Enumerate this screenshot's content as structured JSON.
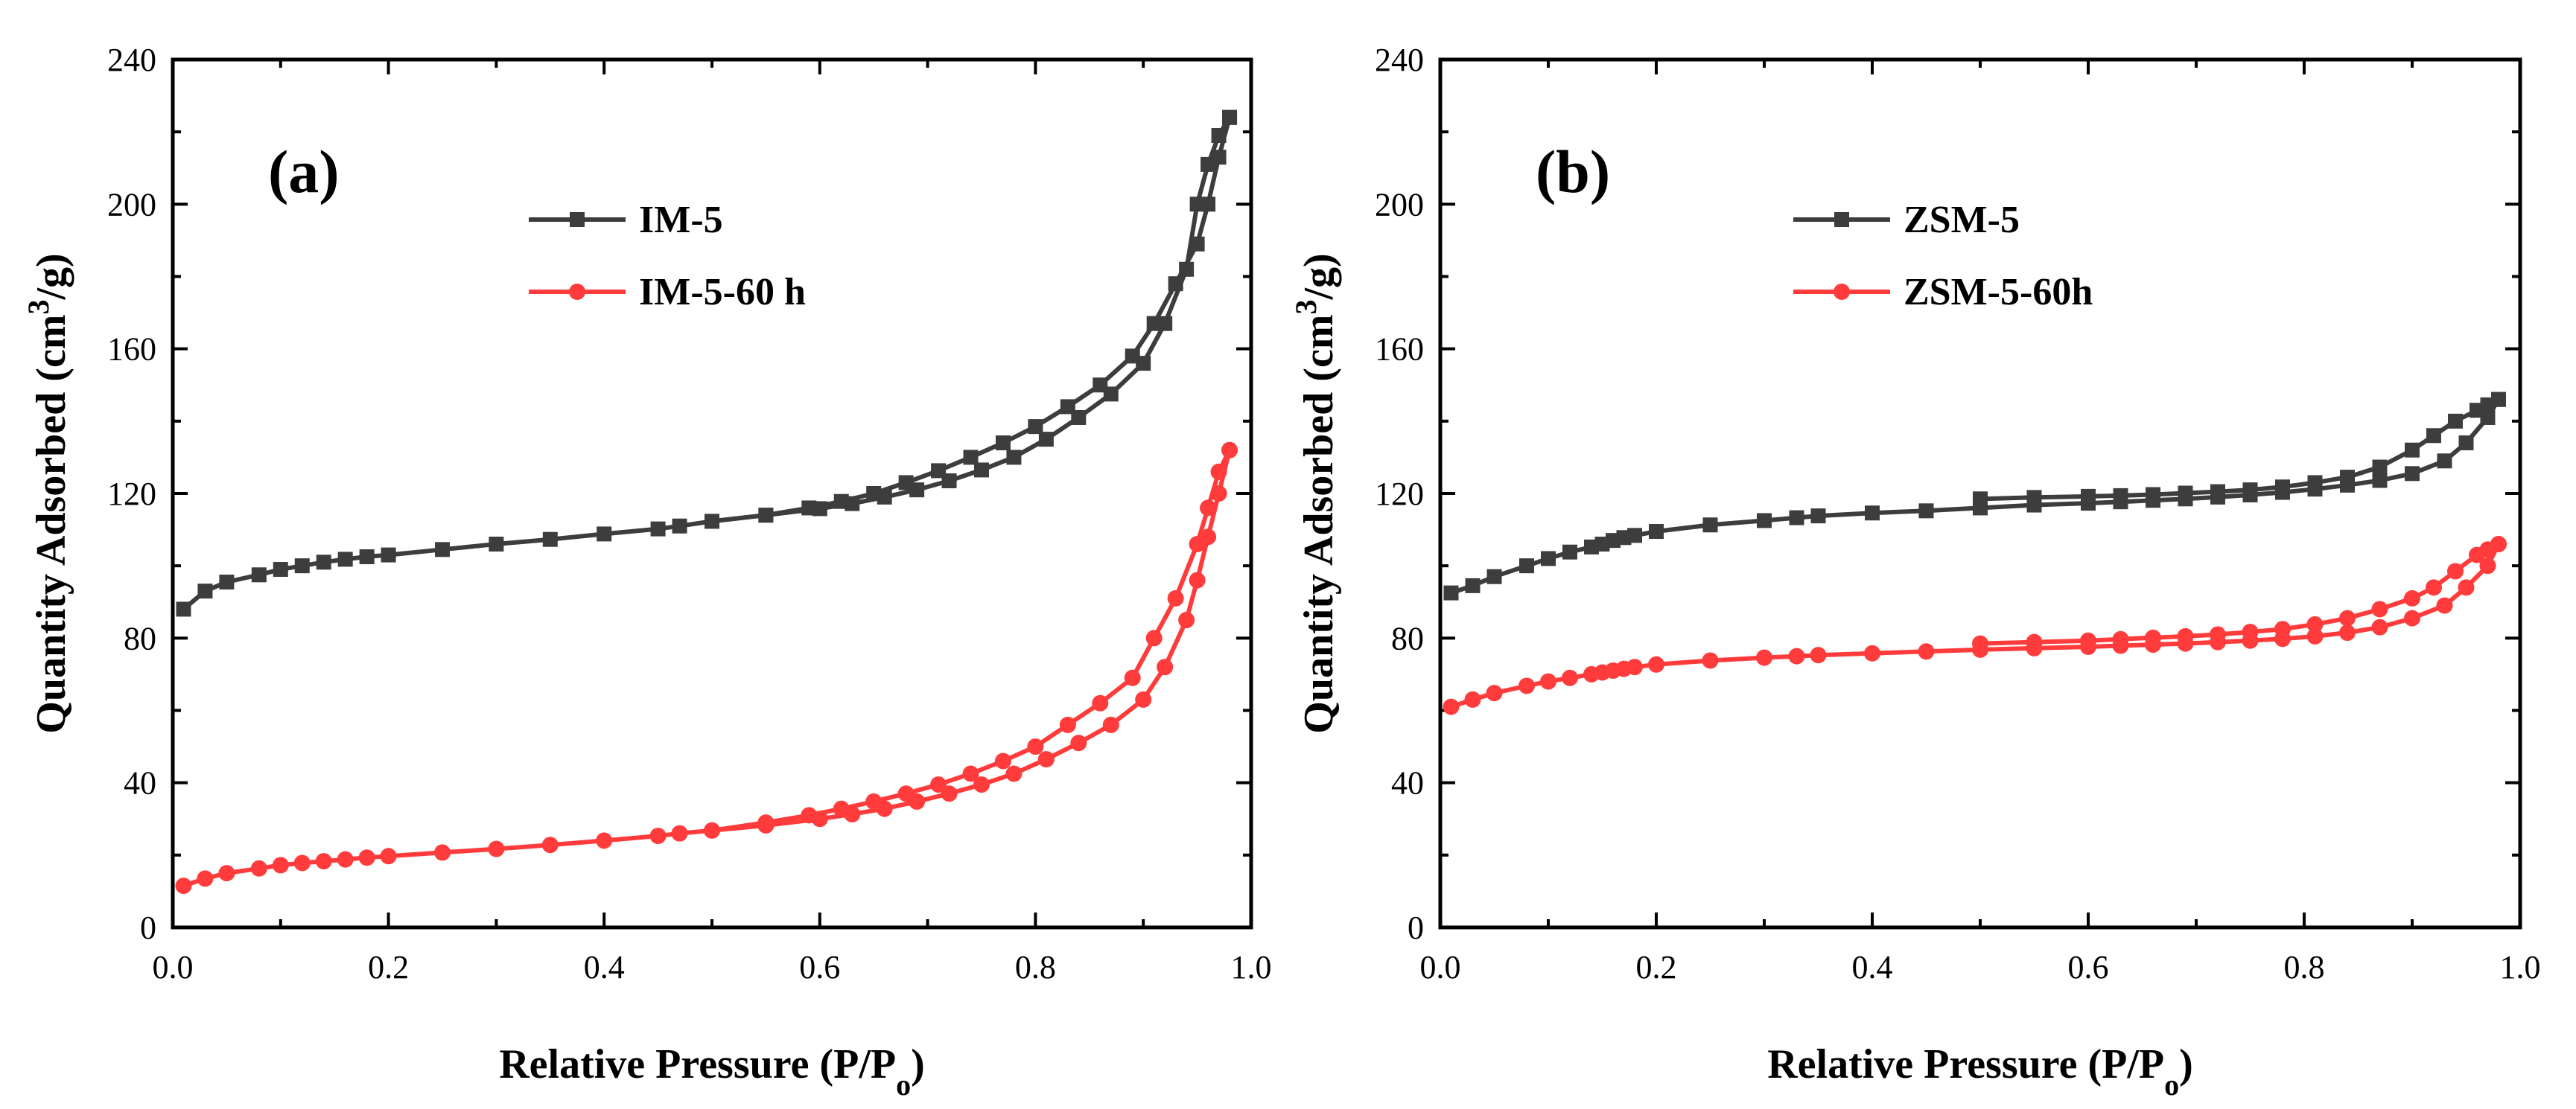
{
  "chart_data": [
    {
      "type": "line",
      "panel_label": "(a)",
      "xlabel": "Relative Pressure (P/P",
      "xlabel_sub": "o",
      "xlabel_close": ")",
      "ylabel": "Quantity Adsorbed (cm",
      "ylabel_sup": "3",
      "ylabel_close": "/g)",
      "xlim": [
        0,
        1.0
      ],
      "ylim": [
        0,
        240
      ],
      "x_ticks": [
        "0.0",
        "0.2",
        "0.4",
        "0.6",
        "0.8",
        "1.0"
      ],
      "y_ticks": [
        "0",
        "40",
        "80",
        "120",
        "160",
        "200",
        "240"
      ],
      "grid": false,
      "legend_position": "top-left",
      "series": [
        {
          "name": "IM-5",
          "color": "#3d3d3d",
          "marker": "square",
          "adsorption": {
            "x": [
              0.01,
              0.03,
              0.05,
              0.08,
              0.1,
              0.12,
              0.14,
              0.16,
              0.18,
              0.2,
              0.25,
              0.3,
              0.35,
              0.4,
              0.45,
              0.47,
              0.5,
              0.55,
              0.6,
              0.63,
              0.66,
              0.69,
              0.72,
              0.75,
              0.78,
              0.81,
              0.84,
              0.87,
              0.9,
              0.92,
              0.94,
              0.95,
              0.96,
              0.97,
              0.98
            ],
            "y": [
              88,
              93,
              95.5,
              97.5,
              99,
              100,
              101,
              101.8,
              102.5,
              103,
              104.5,
              106,
              107.3,
              108.8,
              110.2,
              111,
              112.3,
              114,
              115.8,
              117.2,
              119,
              121,
              123.5,
              126.5,
              130,
              135,
              141,
              147.5,
              156,
              167,
              182,
              200,
              211,
              219,
              224
            ]
          },
          "desorption": {
            "x": [
              0.98,
              0.97,
              0.96,
              0.95,
              0.93,
              0.91,
              0.89,
              0.86,
              0.83,
              0.8,
              0.77,
              0.74,
              0.71,
              0.68,
              0.65,
              0.62,
              0.59,
              0.55,
              0.5
            ],
            "y": [
              224,
              213,
              200,
              189,
              178,
              167,
              158,
              150,
              144,
              138.5,
              134,
              130,
              126.3,
              123,
              120,
              117.8,
              116,
              114,
              112.3
            ]
          }
        },
        {
          "name": "IM-5-60 h",
          "color": "#ff3b3b",
          "marker": "circle",
          "adsorption": {
            "x": [
              0.01,
              0.03,
              0.05,
              0.08,
              0.1,
              0.12,
              0.14,
              0.16,
              0.18,
              0.2,
              0.25,
              0.3,
              0.35,
              0.4,
              0.45,
              0.47,
              0.5,
              0.55,
              0.6,
              0.63,
              0.66,
              0.69,
              0.72,
              0.75,
              0.78,
              0.81,
              0.84,
              0.87,
              0.9,
              0.92,
              0.94,
              0.95,
              0.96,
              0.97,
              0.98
            ],
            "y": [
              11.5,
              13.5,
              15,
              16.3,
              17.2,
              17.8,
              18.3,
              18.8,
              19.3,
              19.7,
              20.7,
              21.7,
              22.8,
              24,
              25.3,
              26,
              26.8,
              28.2,
              30,
              31.3,
              32.8,
              34.8,
              37,
              39.5,
              42.5,
              46.5,
              51,
              56,
              63,
              72,
              85,
              96,
              108,
              120,
              132
            ]
          },
          "desorption": {
            "x": [
              0.98,
              0.97,
              0.96,
              0.95,
              0.93,
              0.91,
              0.89,
              0.86,
              0.83,
              0.8,
              0.77,
              0.74,
              0.71,
              0.68,
              0.65,
              0.62,
              0.59,
              0.55,
              0.5
            ],
            "y": [
              132,
              126,
              116,
              106,
              91,
              80,
              69,
              62,
              56,
              50,
              46,
              42.5,
              39.5,
              37,
              34.8,
              32.8,
              31,
              29,
              26.8
            ]
          }
        }
      ]
    },
    {
      "type": "line",
      "panel_label": "(b)",
      "xlabel": "Relative Pressure (P/P",
      "xlabel_sub": "o",
      "xlabel_close": ")",
      "ylabel": "Quantity Adsorbed (cm",
      "ylabel_sup": "3",
      "ylabel_close": "/g)",
      "xlim": [
        0,
        1.0
      ],
      "ylim": [
        0,
        240
      ],
      "x_ticks": [
        "0.0",
        "0.2",
        "0.4",
        "0.6",
        "0.8",
        "1.0"
      ],
      "y_ticks": [
        "0",
        "40",
        "80",
        "120",
        "160",
        "200",
        "240"
      ],
      "grid": false,
      "legend_position": "top-left",
      "series": [
        {
          "name": "ZSM-5",
          "color": "#3d3d3d",
          "marker": "square",
          "adsorption": {
            "x": [
              0.01,
              0.03,
              0.05,
              0.08,
              0.1,
              0.12,
              0.14,
              0.15,
              0.16,
              0.17,
              0.18,
              0.2,
              0.25,
              0.3,
              0.33,
              0.35,
              0.4,
              0.45,
              0.5,
              0.55,
              0.6,
              0.63,
              0.66,
              0.69,
              0.72,
              0.75,
              0.78,
              0.81,
              0.84,
              0.87,
              0.9,
              0.93,
              0.95,
              0.97,
              0.98
            ],
            "y": [
              92.5,
              94.5,
              97,
              100,
              102,
              103.8,
              105.2,
              106,
              107,
              107.8,
              108.4,
              109.5,
              111.3,
              112.5,
              113.3,
              113.8,
              114.6,
              115.2,
              116,
              116.8,
              117.3,
              117.7,
              118.1,
              118.5,
              119,
              119.6,
              120.3,
              121.2,
              122.3,
              123.6,
              125.5,
              129,
              134,
              141,
              146
            ]
          },
          "desorption": {
            "x": [
              0.98,
              0.97,
              0.96,
              0.94,
              0.92,
              0.9,
              0.87,
              0.84,
              0.81,
              0.78,
              0.75,
              0.72,
              0.69,
              0.66,
              0.63,
              0.6,
              0.55,
              0.5
            ],
            "y": [
              146,
              144.5,
              143,
              140,
              136,
              132,
              127.3,
              124.5,
              123,
              121.8,
              121,
              120.5,
              120.1,
              119.7,
              119.4,
              119.2,
              118.9,
              118.5
            ]
          }
        },
        {
          "name": "ZSM-5-60h",
          "color": "#ff3b3b",
          "marker": "circle",
          "adsorption": {
            "x": [
              0.01,
              0.03,
              0.05,
              0.08,
              0.1,
              0.12,
              0.14,
              0.15,
              0.16,
              0.17,
              0.18,
              0.2,
              0.25,
              0.3,
              0.33,
              0.35,
              0.4,
              0.45,
              0.5,
              0.55,
              0.6,
              0.63,
              0.66,
              0.69,
              0.72,
              0.75,
              0.78,
              0.81,
              0.84,
              0.87,
              0.9,
              0.93,
              0.95,
              0.97,
              0.98
            ],
            "y": [
              61,
              63,
              64.8,
              66.8,
              68,
              69,
              70,
              70.5,
              71,
              71.5,
              72,
              72.7,
              73.8,
              74.6,
              75,
              75.3,
              75.8,
              76.3,
              76.8,
              77.2,
              77.6,
              77.9,
              78.2,
              78.5,
              78.9,
              79.3,
              79.8,
              80.5,
              81.5,
              83,
              85.5,
              89,
              94,
              100,
              106
            ]
          },
          "desorption": {
            "x": [
              0.98,
              0.97,
              0.96,
              0.94,
              0.92,
              0.9,
              0.87,
              0.84,
              0.81,
              0.78,
              0.75,
              0.72,
              0.69,
              0.66,
              0.63,
              0.6,
              0.55,
              0.5
            ],
            "y": [
              106,
              104.5,
              103,
              98.5,
              94,
              91,
              88,
              85.5,
              83.8,
              82.5,
              81.7,
              81,
              80.5,
              80.1,
              79.7,
              79.3,
              78.9,
              78.5
            ]
          }
        }
      ]
    }
  ]
}
